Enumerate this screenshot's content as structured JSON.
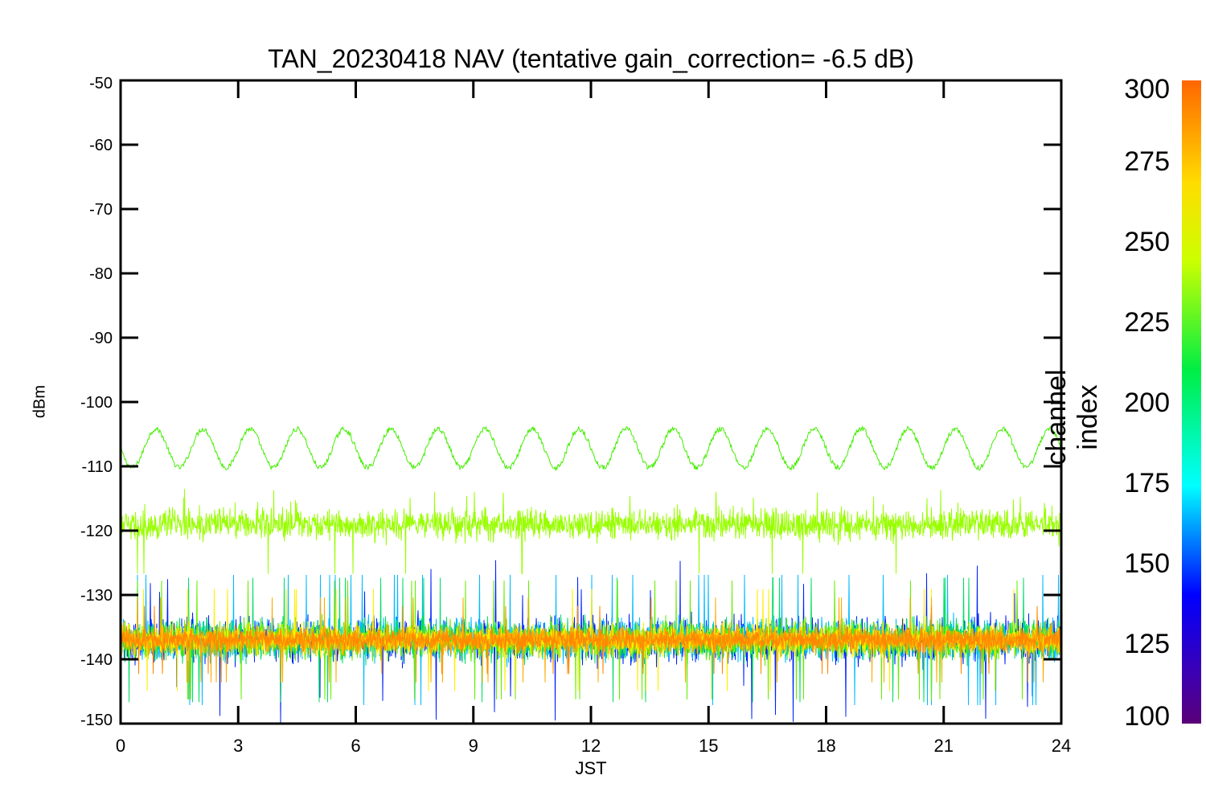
{
  "chart_data": {
    "type": "line",
    "title": "TAN_20230418 NAV (tentative gain_correction= -6.5 dB)",
    "xlabel": "JST",
    "ylabel": "dBm",
    "xlim": [
      0,
      24
    ],
    "ylim": [
      -150,
      -50
    ],
    "x_ticks": [
      "0",
      "3",
      "6",
      "9",
      "12",
      "15",
      "18",
      "21",
      "24"
    ],
    "y_ticks": [
      "-50",
      "-60",
      "-70",
      "-80",
      "-90",
      "-100",
      "-110",
      "-120",
      "-130",
      "-140",
      "-150"
    ],
    "colorbar": {
      "label": "channel index",
      "range": [
        100,
        300
      ],
      "ticks": [
        "300",
        "275",
        "250",
        "225",
        "200",
        "175",
        "150",
        "125",
        "100"
      ]
    },
    "series": [
      {
        "channel": 255,
        "color": "#44ee00",
        "pattern": "sinusoidal",
        "center_dbm": -107.2,
        "amplitude_db": 3.0,
        "period_hours": 1.2,
        "noise_db": 0.4
      },
      {
        "channel": 262,
        "color": "#99ff00",
        "pattern": "noise",
        "center_dbm": -119.0,
        "spread_db": 3.5,
        "spike_max_dbm": -113.5
      },
      {
        "channel": 130,
        "color": "#0022ff",
        "pattern": "noise",
        "center_dbm": -137.0,
        "spread_db": 5.0,
        "spike_max_dbm": -124.5,
        "spike_min_dbm": -150.0
      },
      {
        "channel": 165,
        "color": "#00bbff",
        "pattern": "noise",
        "center_dbm": -137.0,
        "spread_db": 4.6
      },
      {
        "channel": 205,
        "color": "#00dd66",
        "pattern": "noise",
        "center_dbm": -137.0,
        "spread_db": 4.4
      },
      {
        "channel": 240,
        "color": "#66ee00",
        "pattern": "noise",
        "center_dbm": -137.0,
        "spread_db": 4.2
      },
      {
        "channel": 272,
        "color": "#ffee00",
        "pattern": "noise",
        "center_dbm": -137.0,
        "spread_db": 3.6
      },
      {
        "channel": 285,
        "color": "#ffaa00",
        "pattern": "noise",
        "center_dbm": -137.0,
        "spread_db": 3.0
      },
      {
        "channel": 296,
        "color": "#ff8800",
        "pattern": "noise",
        "center_dbm": -137.0,
        "spread_db": 2.4
      }
    ]
  }
}
